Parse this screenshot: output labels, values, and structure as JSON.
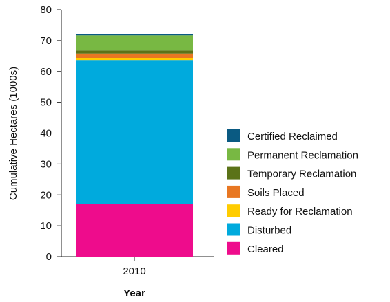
{
  "chart_data": {
    "type": "bar",
    "stacked": true,
    "categories": [
      "2010"
    ],
    "series": [
      {
        "name": "Cleared",
        "values": [
          17
        ],
        "color": "#ee0c8c"
      },
      {
        "name": "Disturbed",
        "values": [
          46.7
        ],
        "color": "#00aadd"
      },
      {
        "name": "Ready for Reclamation",
        "values": [
          0.6
        ],
        "color": "#ffcc00"
      },
      {
        "name": "Soils Placed",
        "values": [
          1.5
        ],
        "color": "#e87722"
      },
      {
        "name": "Temporary Reclamation",
        "values": [
          1.0
        ],
        "color": "#5b7318"
      },
      {
        "name": "Permanent Reclamation",
        "values": [
          4.9
        ],
        "color": "#78b843"
      },
      {
        "name": "Certified Reclaimed",
        "values": [
          0.3
        ],
        "color": "#0a5a82"
      }
    ],
    "xlabel": "Year",
    "ylabel": "Cumulative Hectares (1000s)",
    "ylim": [
      0,
      80
    ],
    "yticks": [
      "0",
      "10",
      "20",
      "30",
      "40",
      "50",
      "60",
      "70",
      "80"
    ],
    "grid": false,
    "legend": {
      "position": "right",
      "entries": [
        "Certified Reclaimed",
        "Permanent Reclamation",
        "Temporary Reclamation",
        "Soils Placed",
        "Ready for Reclamation",
        "Disturbed",
        "Cleared"
      ]
    }
  }
}
